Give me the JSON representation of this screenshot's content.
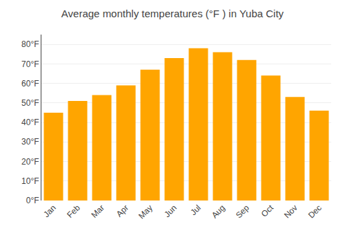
{
  "chart_data": {
    "type": "bar",
    "title": "Average monthly temperatures (°F ) in Yuba City",
    "categories": [
      "Jan",
      "Feb",
      "Mar",
      "Apr",
      "May",
      "Jun",
      "Jul",
      "Aug",
      "Sep",
      "Oct",
      "Nov",
      "Dec"
    ],
    "values": [
      45,
      51,
      54,
      59,
      67,
      73,
      78,
      76,
      72,
      64,
      53,
      46
    ],
    "color": "#FFA500",
    "ylim": [
      0,
      85
    ],
    "yticks": [
      {
        "value": 0,
        "label": "0°F"
      },
      {
        "value": 10,
        "label": "10°F"
      },
      {
        "value": 20,
        "label": "20°F"
      },
      {
        "value": 30,
        "label": "30°F"
      },
      {
        "value": 40,
        "label": "40°F"
      },
      {
        "value": 50,
        "label": "50°F"
      },
      {
        "value": 60,
        "label": "60°F"
      },
      {
        "value": 70,
        "label": "70°F"
      },
      {
        "value": 80,
        "label": "80°F"
      }
    ],
    "grid": true
  }
}
